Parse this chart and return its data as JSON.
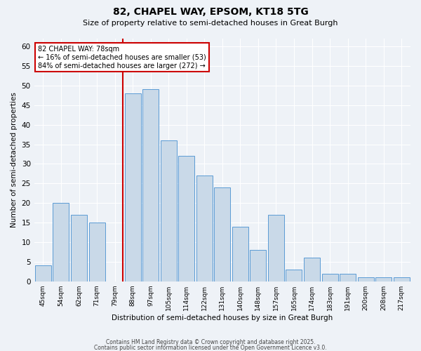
{
  "title_line1": "82, CHAPEL WAY, EPSOM, KT18 5TG",
  "title_line2": "Size of property relative to semi-detached houses in Great Burgh",
  "xlabel": "Distribution of semi-detached houses by size in Great Burgh",
  "ylabel": "Number of semi-detached properties",
  "categories": [
    "45sqm",
    "54sqm",
    "62sqm",
    "71sqm",
    "79sqm",
    "88sqm",
    "97sqm",
    "105sqm",
    "114sqm",
    "122sqm",
    "131sqm",
    "140sqm",
    "148sqm",
    "157sqm",
    "165sqm",
    "174sqm",
    "183sqm",
    "191sqm",
    "200sqm",
    "208sqm",
    "217sqm"
  ],
  "values": [
    4,
    20,
    17,
    15,
    0,
    48,
    49,
    36,
    32,
    27,
    24,
    14,
    8,
    17,
    3,
    6,
    2,
    2,
    1,
    1,
    1
  ],
  "bar_color": "#c9d9e8",
  "bar_edge_color": "#5b9bd5",
  "red_line_index": 4,
  "annotation_title": "82 CHAPEL WAY: 78sqm",
  "annotation_line1": "← 16% of semi-detached houses are smaller (53)",
  "annotation_line2": "84% of semi-detached houses are larger (272) →",
  "annotation_box_color": "#ffffff",
  "annotation_box_edge": "#cc0000",
  "red_line_color": "#cc0000",
  "ylim": [
    0,
    62
  ],
  "yticks": [
    0,
    5,
    10,
    15,
    20,
    25,
    30,
    35,
    40,
    45,
    50,
    55,
    60
  ],
  "footer_line1": "Contains HM Land Registry data © Crown copyright and database right 2025.",
  "footer_line2": "Contains public sector information licensed under the Open Government Licence v3.0.",
  "background_color": "#eef2f7",
  "grid_color": "#ffffff"
}
